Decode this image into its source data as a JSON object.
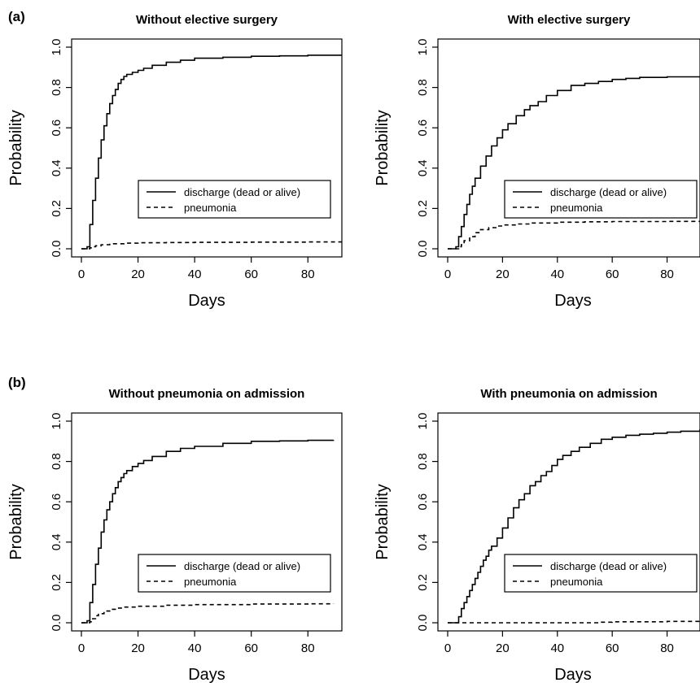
{
  "panel_labels": [
    "(a)",
    "(b)"
  ],
  "chart_data": [
    {
      "type": "line",
      "title": "Without elective surgery",
      "xlabel": "Days",
      "ylabel": "Probability",
      "xlim": [
        0,
        92
      ],
      "ylim": [
        0,
        1
      ],
      "xticks": [
        "0",
        "20",
        "40",
        "60",
        "80"
      ],
      "yticks": [
        "0.0",
        "0.2",
        "0.4",
        "0.6",
        "0.8",
        "1.0"
      ],
      "legend_position": "center-right",
      "series": [
        {
          "name": "discharge (dead or alive)",
          "style": "solid",
          "x": [
            0,
            2,
            3,
            4,
            5,
            6,
            7,
            8,
            9,
            10,
            11,
            12,
            13,
            14,
            15,
            16,
            18,
            20,
            22,
            25,
            30,
            35,
            40,
            50,
            60,
            70,
            80,
            92
          ],
          "y": [
            0,
            0.01,
            0.12,
            0.24,
            0.35,
            0.45,
            0.54,
            0.61,
            0.67,
            0.72,
            0.76,
            0.79,
            0.82,
            0.84,
            0.855,
            0.865,
            0.875,
            0.885,
            0.895,
            0.91,
            0.925,
            0.935,
            0.945,
            0.95,
            0.955,
            0.957,
            0.96,
            0.962
          ]
        },
        {
          "name": "pneumonia",
          "style": "dashed",
          "x": [
            0,
            2,
            3,
            4,
            5,
            7,
            10,
            15,
            20,
            30,
            40,
            60,
            80,
            92
          ],
          "y": [
            0,
            0,
            0.005,
            0.01,
            0.015,
            0.02,
            0.025,
            0.028,
            0.03,
            0.031,
            0.032,
            0.033,
            0.034,
            0.035
          ]
        }
      ]
    },
    {
      "type": "line",
      "title": "With elective surgery",
      "xlabel": "Days",
      "ylabel": "Probability",
      "xlim": [
        0,
        92
      ],
      "ylim": [
        0,
        1
      ],
      "xticks": [
        "0",
        "20",
        "40",
        "60",
        "80"
      ],
      "yticks": [
        "0.0",
        "0.2",
        "0.4",
        "0.6",
        "0.8",
        "1.0"
      ],
      "legend_position": "center-right",
      "series": [
        {
          "name": "discharge (dead or alive)",
          "style": "solid",
          "x": [
            0,
            3,
            4,
            5,
            6,
            7,
            8,
            9,
            10,
            12,
            14,
            16,
            18,
            20,
            22,
            25,
            28,
            30,
            33,
            36,
            40,
            45,
            50,
            55,
            60,
            65,
            70,
            80,
            92
          ],
          "y": [
            0,
            0.01,
            0.06,
            0.11,
            0.17,
            0.22,
            0.27,
            0.31,
            0.35,
            0.41,
            0.46,
            0.51,
            0.55,
            0.59,
            0.62,
            0.66,
            0.69,
            0.71,
            0.73,
            0.76,
            0.785,
            0.81,
            0.82,
            0.83,
            0.84,
            0.845,
            0.85,
            0.853,
            0.856
          ]
        },
        {
          "name": "pneumonia",
          "style": "dashed",
          "x": [
            0,
            3,
            4,
            5,
            6,
            8,
            10,
            12,
            15,
            18,
            20,
            25,
            30,
            40,
            50,
            60,
            80,
            92
          ],
          "y": [
            0,
            0,
            0.01,
            0.02,
            0.04,
            0.06,
            0.08,
            0.095,
            0.105,
            0.113,
            0.118,
            0.123,
            0.128,
            0.132,
            0.134,
            0.135,
            0.136,
            0.137
          ]
        }
      ]
    },
    {
      "type": "line",
      "title": "Without pneumonia on admission",
      "xlabel": "Days",
      "ylabel": "Probability",
      "xlim": [
        0,
        92
      ],
      "ylim": [
        0,
        1
      ],
      "xticks": [
        "0",
        "20",
        "40",
        "60",
        "80"
      ],
      "yticks": [
        "0.0",
        "0.2",
        "0.4",
        "0.6",
        "0.8",
        "1.0"
      ],
      "legend_position": "center-right",
      "series": [
        {
          "name": "discharge (dead or alive)",
          "style": "solid",
          "x": [
            0,
            2,
            3,
            4,
            5,
            6,
            7,
            8,
            9,
            10,
            11,
            12,
            13,
            14,
            15,
            16,
            18,
            20,
            22,
            25,
            30,
            35,
            40,
            50,
            60,
            70,
            80,
            89
          ],
          "y": [
            0,
            0.01,
            0.1,
            0.19,
            0.29,
            0.37,
            0.45,
            0.51,
            0.56,
            0.6,
            0.64,
            0.67,
            0.7,
            0.72,
            0.74,
            0.755,
            0.775,
            0.79,
            0.805,
            0.825,
            0.85,
            0.865,
            0.875,
            0.89,
            0.9,
            0.902,
            0.905,
            0.907
          ]
        },
        {
          "name": "pneumonia",
          "style": "dashed",
          "x": [
            0,
            2,
            3,
            4,
            5,
            6,
            8,
            10,
            12,
            15,
            20,
            30,
            40,
            60,
            80,
            89
          ],
          "y": [
            0,
            0,
            0.005,
            0.02,
            0.035,
            0.045,
            0.058,
            0.067,
            0.073,
            0.078,
            0.082,
            0.087,
            0.09,
            0.093,
            0.094,
            0.095
          ]
        }
      ]
    },
    {
      "type": "line",
      "title": "With pneumonia on admission",
      "xlabel": "Days",
      "ylabel": "Probability",
      "xlim": [
        0,
        92
      ],
      "ylim": [
        0,
        1
      ],
      "xticks": [
        "0",
        "20",
        "40",
        "60",
        "80"
      ],
      "yticks": [
        "0.0",
        "0.2",
        "0.4",
        "0.6",
        "0.8",
        "1.0"
      ],
      "legend_position": "center-right",
      "series": [
        {
          "name": "discharge (dead or alive)",
          "style": "solid",
          "x": [
            0,
            3,
            4,
            5,
            6,
            7,
            8,
            9,
            10,
            11,
            12,
            13,
            14,
            15,
            16,
            18,
            20,
            22,
            24,
            26,
            28,
            30,
            32,
            34,
            36,
            38,
            40,
            42,
            45,
            48,
            52,
            56,
            60,
            65,
            70,
            75,
            80,
            85,
            92
          ],
          "y": [
            0,
            0,
            0.03,
            0.07,
            0.1,
            0.13,
            0.16,
            0.19,
            0.22,
            0.25,
            0.28,
            0.31,
            0.33,
            0.36,
            0.38,
            0.42,
            0.47,
            0.52,
            0.57,
            0.61,
            0.64,
            0.68,
            0.7,
            0.73,
            0.75,
            0.78,
            0.81,
            0.83,
            0.85,
            0.87,
            0.89,
            0.91,
            0.92,
            0.93,
            0.935,
            0.94,
            0.945,
            0.95,
            0.96
          ]
        },
        {
          "name": "pneumonia",
          "style": "dashed",
          "x": [
            0,
            20,
            40,
            55,
            60,
            80,
            92
          ],
          "y": [
            0,
            0,
            0,
            0.003,
            0.005,
            0.007,
            0.008
          ]
        }
      ]
    }
  ]
}
